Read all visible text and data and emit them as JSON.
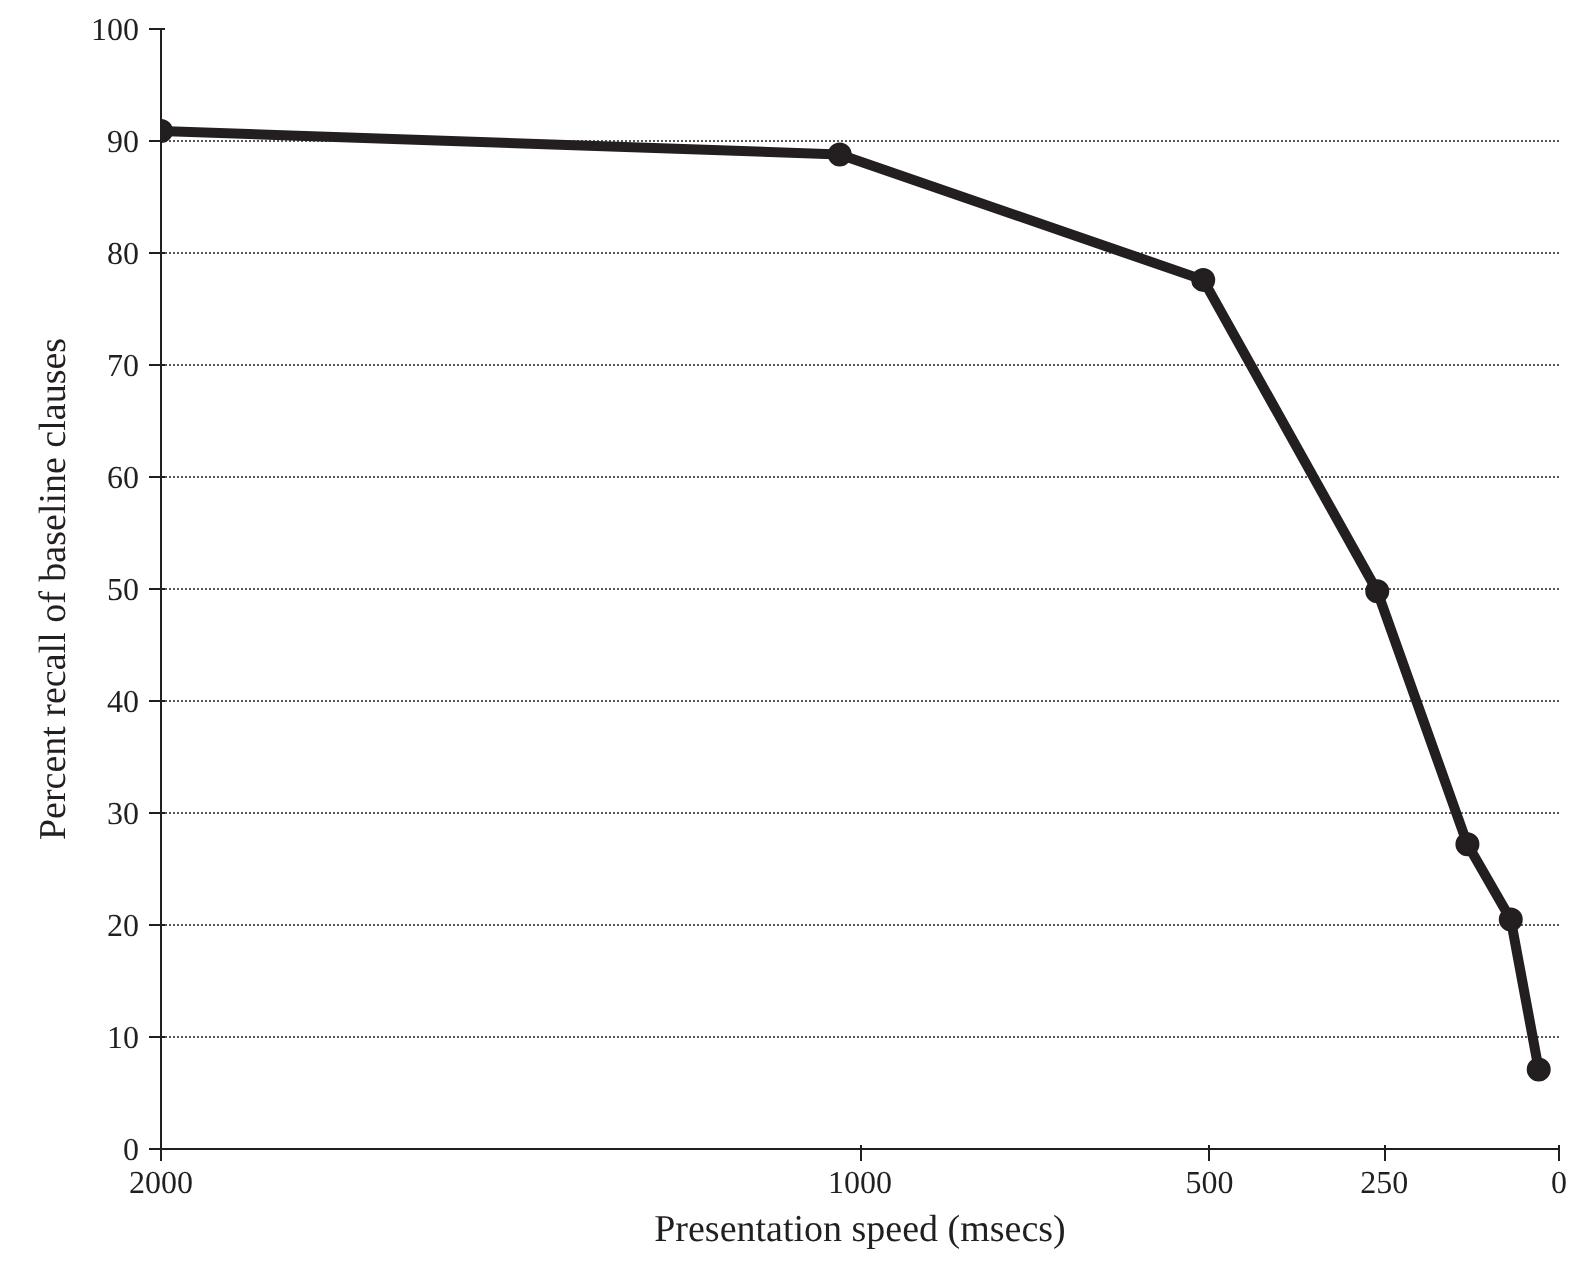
{
  "chart_data": {
    "type": "line",
    "xlabel": "Presentation speed (msecs)",
    "ylabel": "Percent recall of baseline clauses",
    "x": [
      2000,
      1029,
      509,
      260,
      131,
      69,
      29
    ],
    "series": [
      {
        "color": "#231f20",
        "values": [
          90.9,
          88.8,
          77.6,
          49.8,
          27.2,
          20.5,
          7.1
        ]
      }
    ],
    "xlim": [
      2000,
      0
    ],
    "xticks": [
      2000,
      1000,
      500,
      250,
      0
    ],
    "ylim": [
      0,
      100
    ],
    "yticks": [
      0,
      10,
      20,
      30,
      40,
      50,
      60,
      70,
      80,
      90,
      100
    ],
    "grid": "y",
    "marker": "circle",
    "line_style": "solid"
  }
}
